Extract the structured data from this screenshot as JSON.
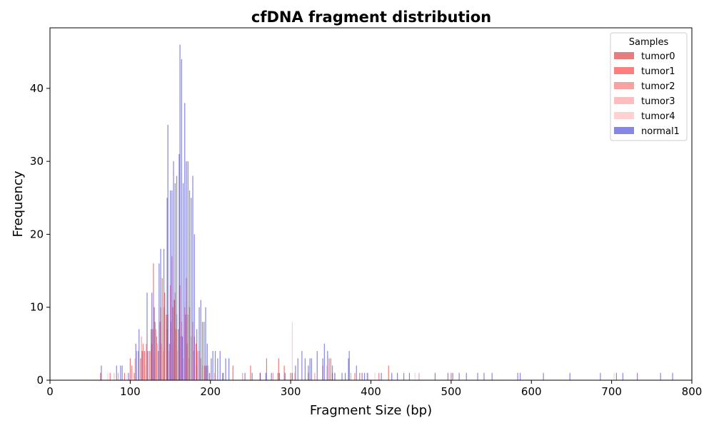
{
  "chart_data": {
    "type": "bar",
    "title": "cfDNA fragment distribution",
    "xlabel": "Fragment Size (bp)",
    "ylabel": "Frequency",
    "xlim": [
      0,
      800
    ],
    "ylim": [
      0,
      48.3
    ],
    "xticks": [
      0,
      100,
      200,
      300,
      400,
      500,
      600,
      700,
      800
    ],
    "yticks": [
      0,
      10,
      20,
      30,
      40
    ],
    "grid": false,
    "legend": {
      "title": "Samples",
      "placement": "top-right"
    },
    "series": [
      {
        "name": "tumor0",
        "color": "#d62728",
        "opacity": 0.6,
        "points": [
          [
            63,
            1
          ],
          [
            93,
            1
          ],
          [
            100,
            3
          ],
          [
            105,
            1
          ],
          [
            113,
            3
          ],
          [
            118,
            4
          ],
          [
            122,
            4
          ],
          [
            126,
            7
          ],
          [
            129,
            16
          ],
          [
            131,
            8
          ],
          [
            135,
            4
          ],
          [
            140,
            14
          ],
          [
            145,
            9
          ],
          [
            149,
            5
          ],
          [
            152,
            17
          ],
          [
            155,
            11
          ],
          [
            160,
            7
          ],
          [
            165,
            6
          ],
          [
            170,
            14
          ],
          [
            174,
            10
          ],
          [
            178,
            8
          ],
          [
            182,
            5
          ],
          [
            188,
            3
          ],
          [
            195,
            2
          ],
          [
            228,
            2
          ],
          [
            250,
            2
          ],
          [
            270,
            3
          ],
          [
            285,
            3
          ],
          [
            292,
            2
          ],
          [
            300,
            1
          ],
          [
            322,
            1
          ],
          [
            348,
            3
          ],
          [
            350,
            3
          ],
          [
            386,
            1
          ],
          [
            422,
            2
          ],
          [
            500,
            1
          ]
        ]
      },
      {
        "name": "tumor1",
        "color": "#ff0000",
        "opacity": 0.5,
        "points": [
          [
            75,
            1
          ],
          [
            102,
            2
          ],
          [
            110,
            4
          ],
          [
            116,
            5
          ],
          [
            124,
            4
          ],
          [
            128,
            7
          ],
          [
            133,
            6
          ],
          [
            138,
            10
          ],
          [
            143,
            12
          ],
          [
            150,
            13
          ],
          [
            156,
            12
          ],
          [
            162,
            13
          ],
          [
            168,
            10
          ],
          [
            172,
            9
          ],
          [
            180,
            6
          ],
          [
            186,
            4
          ],
          [
            193,
            2
          ],
          [
            215,
            1
          ],
          [
            262,
            1
          ],
          [
            284,
            1
          ],
          [
            340,
            2
          ],
          [
            352,
            1
          ],
          [
            380,
            1
          ],
          [
            410,
            1
          ]
        ]
      },
      {
        "name": "tumor2",
        "color": "#f04444",
        "opacity": 0.5,
        "points": [
          [
            85,
            1
          ],
          [
            108,
            4
          ],
          [
            114,
            6
          ],
          [
            120,
            5
          ],
          [
            127,
            5
          ],
          [
            132,
            7
          ],
          [
            137,
            8
          ],
          [
            142,
            10
          ],
          [
            147,
            9
          ],
          [
            153,
            10
          ],
          [
            158,
            9
          ],
          [
            164,
            8
          ],
          [
            169,
            9
          ],
          [
            176,
            6
          ],
          [
            184,
            4
          ],
          [
            197,
            2
          ],
          [
            240,
            1
          ],
          [
            278,
            1
          ],
          [
            330,
            1
          ],
          [
            375,
            1
          ],
          [
            460,
            1
          ]
        ]
      },
      {
        "name": "tumor3",
        "color": "#ff7b7b",
        "opacity": 0.5,
        "points": [
          [
            80,
            1
          ],
          [
            106,
            3
          ],
          [
            117,
            4
          ],
          [
            125,
            4
          ],
          [
            134,
            5
          ],
          [
            139,
            5
          ],
          [
            146,
            7
          ],
          [
            151,
            8
          ],
          [
            157,
            7
          ],
          [
            163,
            6
          ],
          [
            171,
            5
          ],
          [
            179,
            4
          ],
          [
            190,
            2
          ],
          [
            205,
            1
          ],
          [
            305,
            1
          ],
          [
            345,
            2
          ],
          [
            395,
            1
          ]
        ]
      },
      {
        "name": "tumor4",
        "color": "#ffb3b3",
        "opacity": 0.6,
        "points": [
          [
            72,
            1
          ],
          [
            96,
            1
          ],
          [
            119,
            2
          ],
          [
            130,
            3
          ],
          [
            141,
            4
          ],
          [
            148,
            4
          ],
          [
            154,
            5
          ],
          [
            159,
            4
          ],
          [
            166,
            3
          ],
          [
            173,
            3
          ],
          [
            183,
            2
          ],
          [
            198,
            1
          ],
          [
            302,
            8
          ],
          [
            355,
            1
          ],
          [
            405,
            1
          ],
          [
            455,
            1
          ],
          [
            703,
            1
          ]
        ]
      },
      {
        "name": "normal1",
        "color": "#2222cc",
        "opacity": 0.55,
        "points": [
          [
            64,
            2
          ],
          [
            83,
            2
          ],
          [
            88,
            2
          ],
          [
            90,
            2
          ],
          [
            98,
            1
          ],
          [
            107,
            5
          ],
          [
            111,
            7
          ],
          [
            115,
            4
          ],
          [
            121,
            12
          ],
          [
            127,
            12
          ],
          [
            130,
            10
          ],
          [
            136,
            16
          ],
          [
            138,
            18
          ],
          [
            142,
            18
          ],
          [
            146,
            25
          ],
          [
            147,
            35
          ],
          [
            150,
            26
          ],
          [
            152,
            26
          ],
          [
            154,
            30
          ],
          [
            156,
            27
          ],
          [
            158,
            28
          ],
          [
            161,
            31
          ],
          [
            162,
            46
          ],
          [
            164,
            44
          ],
          [
            166,
            27
          ],
          [
            168,
            38
          ],
          [
            170,
            30
          ],
          [
            172,
            30
          ],
          [
            174,
            26
          ],
          [
            176,
            25
          ],
          [
            178,
            28
          ],
          [
            180,
            20
          ],
          [
            183,
            7
          ],
          [
            186,
            10
          ],
          [
            188,
            11
          ],
          [
            190,
            8
          ],
          [
            192,
            8
          ],
          [
            194,
            10
          ],
          [
            196,
            5
          ],
          [
            199,
            1
          ],
          [
            201,
            3
          ],
          [
            203,
            4
          ],
          [
            206,
            4
          ],
          [
            209,
            3
          ],
          [
            212,
            4
          ],
          [
            216,
            1
          ],
          [
            219,
            3
          ],
          [
            223,
            3
          ],
          [
            243,
            1
          ],
          [
            252,
            1
          ],
          [
            262,
            1
          ],
          [
            269,
            1
          ],
          [
            276,
            1
          ],
          [
            286,
            1
          ],
          [
            293,
            1
          ],
          [
            302,
            1
          ],
          [
            306,
            2
          ],
          [
            309,
            3
          ],
          [
            314,
            4
          ],
          [
            318,
            3
          ],
          [
            322,
            2
          ],
          [
            324,
            3
          ],
          [
            326,
            3
          ],
          [
            333,
            4
          ],
          [
            340,
            3
          ],
          [
            342,
            5
          ],
          [
            346,
            4
          ],
          [
            352,
            2
          ],
          [
            355,
            1
          ],
          [
            364,
            1
          ],
          [
            368,
            1
          ],
          [
            372,
            3
          ],
          [
            373,
            4
          ],
          [
            382,
            2
          ],
          [
            389,
            1
          ],
          [
            392,
            1
          ],
          [
            396,
            1
          ],
          [
            413,
            1
          ],
          [
            426,
            1
          ],
          [
            433,
            1
          ],
          [
            441,
            1
          ],
          [
            448,
            1
          ],
          [
            480,
            1
          ],
          [
            496,
            1
          ],
          [
            502,
            1
          ],
          [
            510,
            1
          ],
          [
            519,
            1
          ],
          [
            533,
            1
          ],
          [
            541,
            1
          ],
          [
            551,
            1
          ],
          [
            583,
            1
          ],
          [
            586,
            1
          ],
          [
            615,
            1
          ],
          [
            648,
            1
          ],
          [
            686,
            1
          ],
          [
            706,
            1
          ],
          [
            714,
            1
          ],
          [
            732,
            1
          ],
          [
            761,
            1
          ],
          [
            776,
            1
          ]
        ]
      }
    ]
  }
}
